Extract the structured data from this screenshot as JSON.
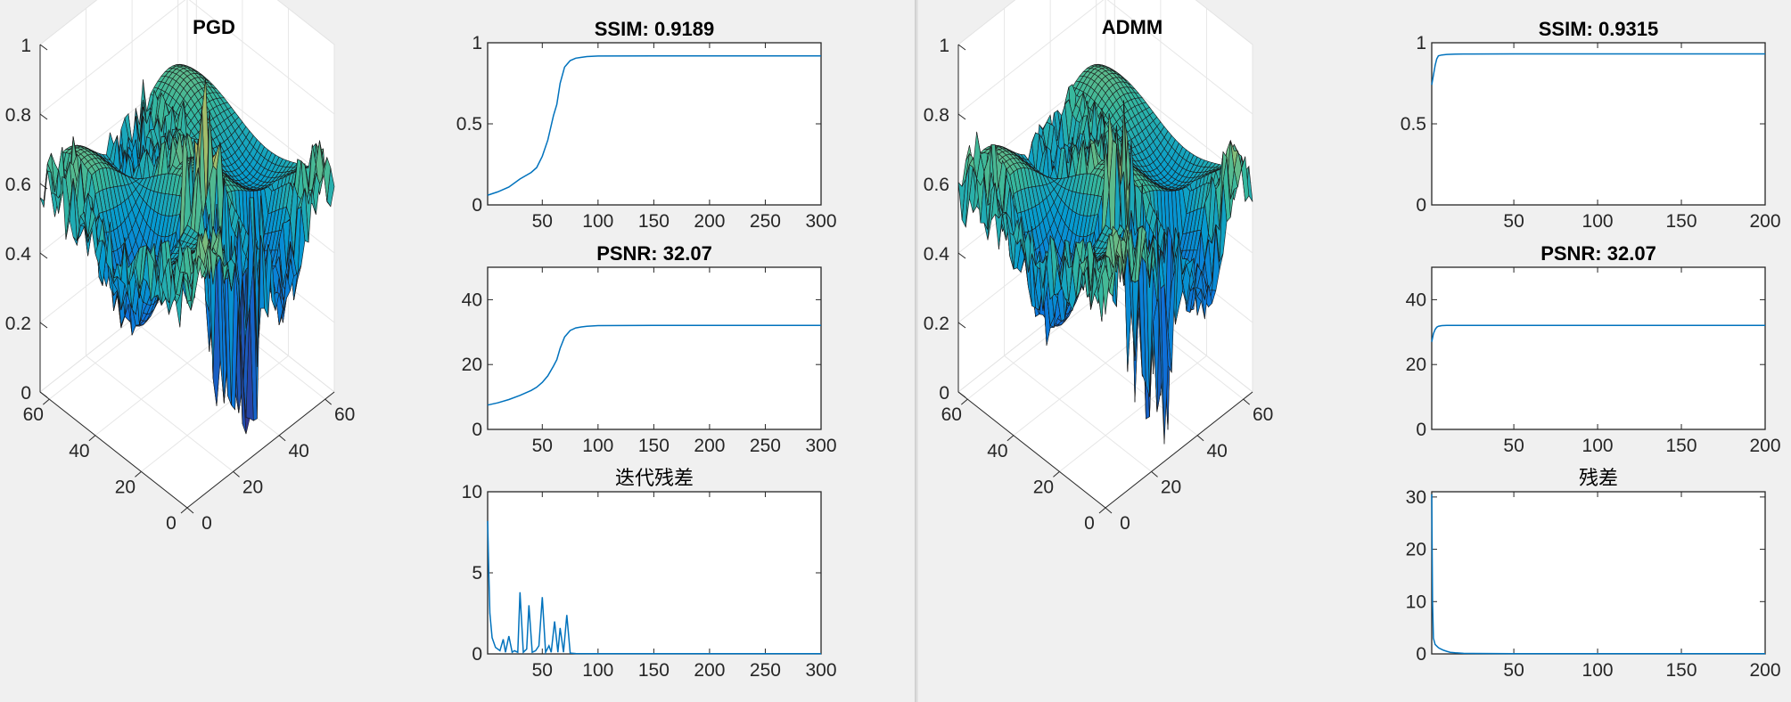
{
  "figures": [
    {
      "surface": {
        "title": "PGD",
        "z_ticks": [
          "0",
          "0.2",
          "0.4",
          "0.6",
          "0.8",
          "1"
        ],
        "x_ticks": [
          "0",
          "20",
          "40",
          "60"
        ],
        "y_ticks": [
          "0",
          "20",
          "40",
          "60"
        ]
      },
      "panels": [
        {
          "title": "SSIM: 0.9189",
          "xticks": [
            "50",
            "100",
            "150",
            "200",
            "250",
            "300"
          ],
          "yticks": [
            "0",
            "0.5",
            "1"
          ]
        },
        {
          "title": "PSNR: 32.07",
          "xticks": [
            "50",
            "100",
            "150",
            "200",
            "250",
            "300"
          ],
          "yticks": [
            "0",
            "20",
            "40"
          ]
        },
        {
          "title": "迭代残差",
          "xticks": [
            "50",
            "100",
            "150",
            "200",
            "250",
            "300"
          ],
          "yticks": [
            "0",
            "5",
            "10"
          ]
        }
      ]
    },
    {
      "surface": {
        "title": "ADMM",
        "z_ticks": [
          "0",
          "0.2",
          "0.4",
          "0.6",
          "0.8",
          "1"
        ],
        "x_ticks": [
          "0",
          "20",
          "40",
          "60"
        ],
        "y_ticks": [
          "0",
          "20",
          "40",
          "60"
        ]
      },
      "panels": [
        {
          "title": "SSIM: 0.9315",
          "xticks": [
            "50",
            "100",
            "150",
            "200"
          ],
          "yticks": [
            "0",
            "0.5",
            "1"
          ]
        },
        {
          "title": "PSNR: 32.07",
          "xticks": [
            "50",
            "100",
            "150",
            "200"
          ],
          "yticks": [
            "0",
            "20",
            "40"
          ]
        },
        {
          "title": "残差",
          "xticks": [
            "50",
            "100",
            "150",
            "200"
          ],
          "yticks": [
            "0",
            "10",
            "20",
            "30"
          ]
        }
      ]
    }
  ],
  "chart_data": [
    {
      "type": "surface",
      "title": "PGD",
      "xlim": [
        0,
        64
      ],
      "ylim": [
        0,
        64
      ],
      "zlim": [
        0,
        1
      ],
      "colormap": "parula",
      "grid": true
    },
    {
      "type": "line",
      "title": "SSIM: 0.9189",
      "color": "#0072bd",
      "xlim": [
        1,
        300
      ],
      "ylim": [
        0,
        1
      ],
      "x": [
        1,
        10,
        20,
        30,
        40,
        45,
        50,
        55,
        60,
        63,
        66,
        70,
        75,
        80,
        85,
        90,
        100,
        150,
        200,
        250,
        300
      ],
      "y": [
        0.06,
        0.08,
        0.11,
        0.16,
        0.2,
        0.23,
        0.3,
        0.4,
        0.55,
        0.62,
        0.75,
        0.85,
        0.89,
        0.905,
        0.91,
        0.915,
        0.918,
        0.919,
        0.919,
        0.919,
        0.919
      ]
    },
    {
      "type": "line",
      "title": "PSNR: 32.07",
      "color": "#0072bd",
      "xlim": [
        1,
        300
      ],
      "ylim": [
        0,
        50
      ],
      "x": [
        1,
        10,
        20,
        30,
        40,
        45,
        50,
        55,
        60,
        63,
        66,
        70,
        75,
        80,
        85,
        90,
        100,
        150,
        200,
        250,
        300
      ],
      "y": [
        7.5,
        8.2,
        9.2,
        10.5,
        12.0,
        13.0,
        14.5,
        16.5,
        19.5,
        21.5,
        25.0,
        28.5,
        30.5,
        31.3,
        31.6,
        31.8,
        32.0,
        32.07,
        32.07,
        32.07,
        32.07
      ]
    },
    {
      "type": "line",
      "title": "迭代残差",
      "color": "#0072bd",
      "xlim": [
        1,
        300
      ],
      "ylim": [
        0,
        10
      ],
      "x": [
        1,
        2,
        3,
        5,
        8,
        12,
        15,
        17,
        20,
        23,
        25,
        28,
        30,
        33,
        36,
        38,
        41,
        44,
        47,
        50,
        53,
        56,
        58,
        61,
        64,
        66,
        69,
        72,
        75,
        80,
        100,
        150,
        200,
        250,
        300
      ],
      "y": [
        8.2,
        5.0,
        2.5,
        1.0,
        0.4,
        0.2,
        0.9,
        0.1,
        1.1,
        0.1,
        0.2,
        0.1,
        3.8,
        0.1,
        0.3,
        3.0,
        0.1,
        0.2,
        0.5,
        3.5,
        0.1,
        0.5,
        0.1,
        2.0,
        0.1,
        1.6,
        0.1,
        2.4,
        0.05,
        0.02,
        0.01,
        0.01,
        0.01,
        0.01,
        0.01
      ]
    },
    {
      "type": "surface",
      "title": "ADMM",
      "xlim": [
        0,
        64
      ],
      "ylim": [
        0,
        64
      ],
      "zlim": [
        0,
        1
      ],
      "colormap": "parula",
      "grid": true
    },
    {
      "type": "line",
      "title": "SSIM: 0.9315",
      "color": "#0072bd",
      "xlim": [
        1,
        200
      ],
      "ylim": [
        0,
        1
      ],
      "x": [
        1,
        2,
        3,
        4,
        5,
        7,
        10,
        15,
        20,
        50,
        100,
        150,
        200
      ],
      "y": [
        0.74,
        0.8,
        0.86,
        0.9,
        0.92,
        0.925,
        0.928,
        0.93,
        0.931,
        0.9315,
        0.9315,
        0.9315,
        0.9315
      ]
    },
    {
      "type": "line",
      "title": "PSNR: 32.07",
      "color": "#0072bd",
      "xlim": [
        1,
        200
      ],
      "ylim": [
        0,
        50
      ],
      "x": [
        1,
        2,
        3,
        4,
        5,
        7,
        10,
        20,
        50,
        100,
        150,
        200
      ],
      "y": [
        27.0,
        29.5,
        30.8,
        31.5,
        31.8,
        32.0,
        32.05,
        32.07,
        32.07,
        32.07,
        32.07,
        32.07
      ]
    },
    {
      "type": "line",
      "title": "残差",
      "color": "#0072bd",
      "xlim": [
        1,
        200
      ],
      "ylim": [
        0,
        31
      ],
      "x": [
        1,
        1.5,
        2,
        3,
        4,
        5,
        6,
        8,
        10,
        12,
        15,
        20,
        50,
        100,
        150,
        200
      ],
      "y": [
        30.5,
        10.0,
        3.0,
        1.8,
        1.5,
        1.2,
        1.0,
        0.7,
        0.5,
        0.3,
        0.2,
        0.1,
        0.05,
        0.05,
        0.05,
        0.05
      ]
    }
  ]
}
